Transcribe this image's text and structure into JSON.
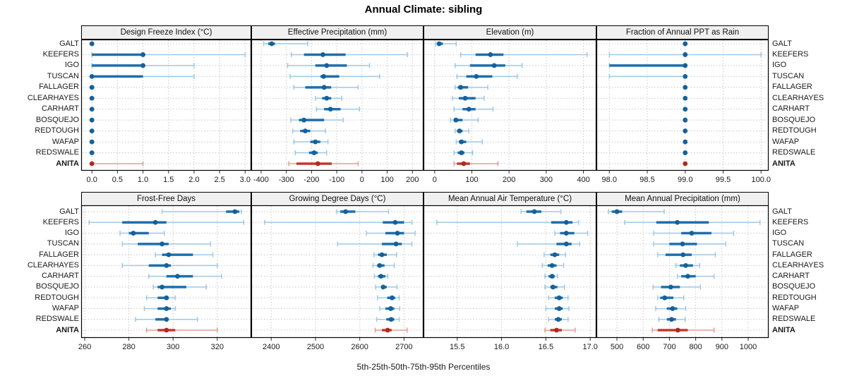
{
  "title": "Annual Climate: sibling",
  "caption": "5th-25th-50th-75th-95th Percentiles",
  "sites": [
    "GALT",
    "KEEFERS",
    "IGO",
    "TUSCAN",
    "FALLAGER",
    "CLEARHAYES",
    "CARHART",
    "BOSQUEJO",
    "REDTOUGH",
    "WAFAP",
    "REDSWALE",
    "ANITA"
  ],
  "highlight_site": "ANITA",
  "colors": {
    "blue": "#1d6fae",
    "blue_light": "#9fc8e4",
    "blue_dot": "#14619c",
    "red": "#c03a2e",
    "red_light": "#e39d96",
    "red_dot": "#b02a20",
    "strip_bg": "#f0f0f0",
    "grid": "#c8c8c8",
    "border": "#000000"
  },
  "chart_data": {
    "type": "scatter",
    "variant": "percentile-interval-dotplot",
    "grid": "dotted",
    "percentiles": [
      5,
      25,
      50,
      75,
      95
    ],
    "categories": [
      "GALT",
      "KEEFERS",
      "IGO",
      "TUSCAN",
      "FALLAGER",
      "CLEARHAYES",
      "CARHART",
      "BOSQUEJO",
      "REDTOUGH",
      "WAFAP",
      "REDSWALE",
      "ANITA"
    ],
    "panels": [
      {
        "title": "Design Freeze Index (°C)",
        "ticks": [
          0,
          0.5,
          1,
          1.5,
          2,
          2.5,
          3
        ],
        "tick_labels": [
          "0.0",
          "0.5",
          "1.0",
          "1.5",
          "2.0",
          "2.5",
          "3.0"
        ],
        "xrange": [
          -0.21,
          3.12
        ],
        "values": [
          [
            0,
            0,
            0,
            0,
            0
          ],
          [
            0,
            0,
            1,
            1,
            3
          ],
          [
            0,
            0,
            1,
            1,
            2
          ],
          [
            0,
            0,
            0,
            1,
            2
          ],
          [
            0,
            0,
            0,
            0,
            0
          ],
          [
            0,
            0,
            0,
            0,
            0
          ],
          [
            0,
            0,
            0,
            0,
            0
          ],
          [
            0,
            0,
            0,
            0,
            0
          ],
          [
            0,
            0,
            0,
            0,
            0
          ],
          [
            0,
            0,
            0,
            0,
            0
          ],
          [
            0,
            0,
            0,
            0,
            0
          ],
          [
            0,
            0,
            0,
            0,
            1
          ]
        ]
      },
      {
        "title": "Effective Precipitation (mm)",
        "ticks": [
          -400,
          -300,
          -200,
          -100,
          0,
          100,
          200
        ],
        "tick_labels": [
          "-400",
          "-300",
          "-200",
          "-100",
          "0",
          "100",
          "200"
        ],
        "xrange": [
          -439,
          244
        ],
        "values": [
          [
            -390,
            -372,
            -358,
            -345,
            -215
          ],
          [
            -280,
            -230,
            -155,
            -65,
            180
          ],
          [
            -295,
            -185,
            -140,
            -60,
            30
          ],
          [
            -285,
            -165,
            -152,
            -90,
            70
          ],
          [
            -270,
            -225,
            -150,
            -122,
            -15
          ],
          [
            -185,
            -158,
            -140,
            -122,
            -80
          ],
          [
            -180,
            -150,
            -125,
            -85,
            -10
          ],
          [
            -282,
            -250,
            -230,
            -150,
            -75
          ],
          [
            -275,
            -245,
            -225,
            -205,
            -145
          ],
          [
            -270,
            -205,
            -185,
            -165,
            -135
          ],
          [
            -265,
            -210,
            -190,
            -175,
            -140
          ],
          [
            -290,
            -260,
            -175,
            -120,
            -15
          ]
        ]
      },
      {
        "title": "Elevation (m)",
        "ticks": [
          0,
          100,
          200,
          300,
          400
        ],
        "tick_labels": [
          "0",
          "100",
          "200",
          "300",
          "400"
        ],
        "xrange": [
          -30,
          435
        ],
        "values": [
          [
            3,
            7,
            12,
            22,
            58
          ],
          [
            70,
            110,
            150,
            185,
            410
          ],
          [
            55,
            95,
            160,
            190,
            235
          ],
          [
            60,
            85,
            112,
            155,
            222
          ],
          [
            55,
            62,
            70,
            90,
            143
          ],
          [
            48,
            65,
            82,
            110,
            133
          ],
          [
            52,
            75,
            92,
            110,
            157
          ],
          [
            42,
            52,
            57,
            75,
            117
          ],
          [
            55,
            60,
            67,
            75,
            92
          ],
          [
            58,
            65,
            72,
            85,
            128
          ],
          [
            52,
            62,
            72,
            80,
            102
          ],
          [
            52,
            60,
            78,
            95,
            170
          ]
        ]
      },
      {
        "title": "Fraction of Annual PPT as Rain",
        "ticks": [
          98,
          98.5,
          99,
          99.5,
          100
        ],
        "tick_labels": [
          "98.0",
          "98.5",
          "99.0",
          "99.5",
          "100.0"
        ],
        "xrange": [
          97.83,
          100.1
        ],
        "values": [
          [
            99,
            99,
            99,
            99,
            99
          ],
          [
            98,
            99,
            99,
            99,
            100
          ],
          [
            98,
            98,
            99,
            99,
            99
          ],
          [
            98,
            99,
            99,
            99,
            99
          ],
          [
            99,
            99,
            99,
            99,
            99
          ],
          [
            99,
            99,
            99,
            99,
            99
          ],
          [
            99,
            99,
            99,
            99,
            99
          ],
          [
            99,
            99,
            99,
            99,
            99
          ],
          [
            99,
            99,
            99,
            99,
            99
          ],
          [
            99,
            99,
            99,
            99,
            99
          ],
          [
            99,
            99,
            99,
            99,
            99
          ],
          [
            99,
            99,
            99,
            99,
            99
          ]
        ]
      },
      {
        "title": "Frost-Free Days",
        "ticks": [
          260,
          280,
          300,
          320
        ],
        "tick_labels": [
          "260",
          "280",
          "300",
          "320"
        ],
        "xrange": [
          258.4,
          335.4
        ],
        "values": [
          [
            295,
            324,
            328,
            330,
            331
          ],
          [
            262,
            277,
            292,
            297,
            332
          ],
          [
            276,
            280,
            282,
            289,
            296
          ],
          [
            277,
            284,
            295,
            298,
            317
          ],
          [
            292,
            295,
            298,
            309,
            318
          ],
          [
            277,
            289,
            297,
            299,
            320
          ],
          [
            289,
            297,
            302,
            309,
            322
          ],
          [
            291,
            293,
            295,
            306,
            315
          ],
          [
            288,
            293,
            297,
            298,
            301
          ],
          [
            287,
            293,
            297,
            299,
            301
          ],
          [
            283,
            292,
            297,
            298,
            311
          ],
          [
            288,
            293,
            297,
            301,
            320
          ]
        ]
      },
      {
        "title": "Growing Degree Days (°C)",
        "ticks": [
          2400,
          2500,
          2600,
          2700
        ],
        "tick_labels": [
          "2400",
          "2500",
          "2600",
          "2700"
        ],
        "xrange": [
          2355,
          2744
        ],
        "values": [
          [
            2548,
            2556,
            2568,
            2590,
            2665
          ],
          [
            2385,
            2652,
            2680,
            2700,
            2718
          ],
          [
            2615,
            2658,
            2685,
            2700,
            2725
          ],
          [
            2550,
            2650,
            2682,
            2695,
            2718
          ],
          [
            2632,
            2641,
            2650,
            2661,
            2683
          ],
          [
            2630,
            2639,
            2645,
            2656,
            2678
          ],
          [
            2633,
            2641,
            2648,
            2658,
            2663
          ],
          [
            2636,
            2648,
            2653,
            2661,
            2684
          ],
          [
            2640,
            2662,
            2673,
            2680,
            2689
          ],
          [
            2645,
            2658,
            2670,
            2678,
            2690
          ],
          [
            2638,
            2660,
            2671,
            2678,
            2689
          ],
          [
            2635,
            2650,
            2663,
            2672,
            2707
          ]
        ]
      },
      {
        "title": "Mean Annual Air Temperature (°C)",
        "ticks": [
          15.5,
          16,
          16.5,
          17
        ],
        "tick_labels": [
          "15.5",
          "16.0",
          "16.5",
          "17.0"
        ],
        "xrange": [
          15.12,
          17.07
        ],
        "values": [
          [
            16.22,
            16.28,
            16.37,
            16.45,
            16.67
          ],
          [
            15.27,
            16.56,
            16.73,
            16.8,
            16.87
          ],
          [
            16.6,
            16.66,
            16.73,
            16.82,
            16.97
          ],
          [
            16.18,
            16.62,
            16.73,
            16.79,
            16.88
          ],
          [
            16.48,
            16.55,
            16.6,
            16.65,
            16.72
          ],
          [
            16.46,
            16.52,
            16.57,
            16.62,
            16.7
          ],
          [
            16.49,
            16.53,
            16.57,
            16.6,
            16.63
          ],
          [
            16.49,
            16.55,
            16.58,
            16.63,
            16.71
          ],
          [
            16.53,
            16.6,
            16.65,
            16.69,
            16.75
          ],
          [
            16.5,
            16.6,
            16.65,
            16.69,
            16.76
          ],
          [
            16.53,
            16.6,
            16.64,
            16.68,
            16.75
          ],
          [
            16.49,
            16.55,
            16.62,
            16.68,
            16.83
          ]
        ]
      },
      {
        "title": "Mean Annual Precipitation (mm)",
        "ticks": [
          500,
          600,
          700,
          800,
          900,
          1000
        ],
        "tick_labels": [
          "500",
          "600",
          "700",
          "800",
          "900",
          "1000"
        ],
        "xrange": [
          422,
          1078
        ],
        "values": [
          [
            468,
            480,
            500,
            520,
            680
          ],
          [
            530,
            650,
            730,
            850,
            1045
          ],
          [
            640,
            745,
            785,
            860,
            945
          ],
          [
            640,
            700,
            750,
            805,
            915
          ],
          [
            655,
            685,
            752,
            785,
            875
          ],
          [
            725,
            740,
            762,
            790,
            815
          ],
          [
            730,
            745,
            770,
            800,
            870
          ],
          [
            638,
            668,
            705,
            740,
            818
          ],
          [
            655,
            665,
            682,
            715,
            755
          ],
          [
            648,
            690,
            712,
            730,
            762
          ],
          [
            660,
            690,
            708,
            725,
            760
          ],
          [
            635,
            655,
            732,
            770,
            870
          ]
        ]
      }
    ]
  }
}
